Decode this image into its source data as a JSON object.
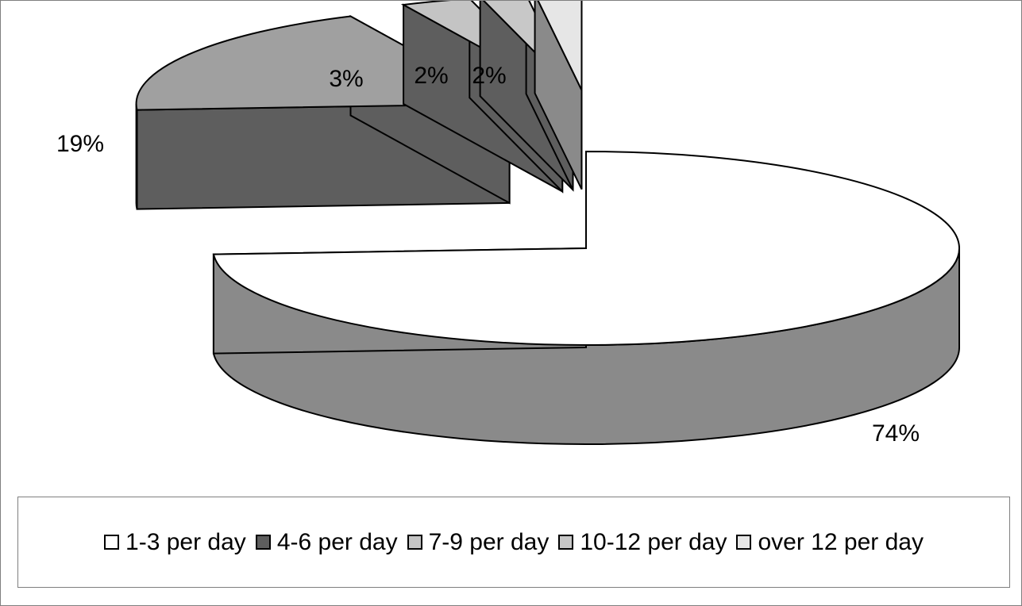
{
  "chart_data": {
    "type": "pie",
    "title": "",
    "categories": [
      "1-3 per day",
      "4-6 per day",
      "7-9 per day",
      "10-12 per day",
      "over 12 per day"
    ],
    "values": [
      74,
      19,
      3,
      2,
      2
    ],
    "labels": [
      "74%",
      "19%",
      "3%",
      "2%",
      "2%"
    ],
    "legend_position": "bottom",
    "style": "3d exploded",
    "colors": {
      "slice_tops": [
        "#ffffff",
        "#a0a0a0",
        "#c4c4c4",
        "#c8c8c8",
        "#e6e6e6"
      ],
      "slice_sides": [
        "#8a8a8a",
        "#5e5e5e",
        "#5e5e5e",
        "#5e5e5e",
        "#8a8a8a"
      ],
      "legend_swatches": [
        "#ffffff",
        "#5e5e5e",
        "#c4c4c4",
        "#c8c8c8",
        "#e6e6e6"
      ]
    }
  }
}
